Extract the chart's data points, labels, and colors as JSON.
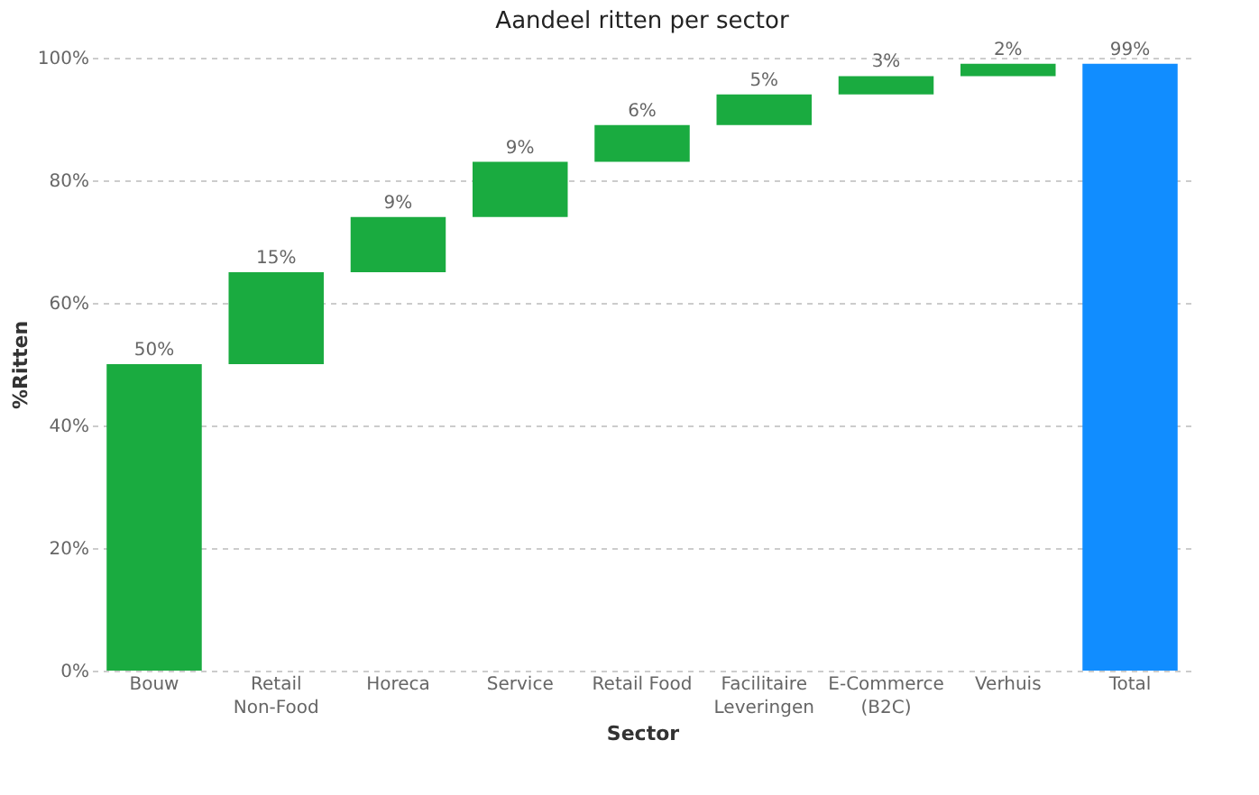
{
  "chart_data": {
    "type": "bar",
    "title": "Aandeel ritten per sector",
    "xlabel": "Sector",
    "ylabel": "%Ritten",
    "categories": [
      "Bouw",
      "Retail\nNon-Food",
      "Horeca",
      "Service",
      "Retail Food",
      "Facilitaire\nLeveringen",
      "E-Commerce\n(B2C)",
      "Verhuis",
      "Total"
    ],
    "values": [
      50,
      15,
      9,
      9,
      6,
      5,
      3,
      2,
      99
    ],
    "base": [
      0,
      50,
      65,
      74,
      83,
      89,
      94,
      97,
      0
    ],
    "colors": [
      "#1aab40",
      "#1aab40",
      "#1aab40",
      "#1aab40",
      "#1aab40",
      "#1aab40",
      "#1aab40",
      "#1aab40",
      "#118dff"
    ],
    "value_labels": [
      "50%",
      "15%",
      "9%",
      "9%",
      "6%",
      "5%",
      "3%",
      "2%",
      "99%"
    ],
    "ylim": [
      0,
      100
    ],
    "yticks": [
      {
        "value": 0,
        "label": "0%"
      },
      {
        "value": 20,
        "label": "20%"
      },
      {
        "value": 40,
        "label": "40%"
      },
      {
        "value": 60,
        "label": "60%"
      },
      {
        "value": 80,
        "label": "80%"
      },
      {
        "value": 100,
        "label": "100%"
      }
    ],
    "grid": "y"
  }
}
